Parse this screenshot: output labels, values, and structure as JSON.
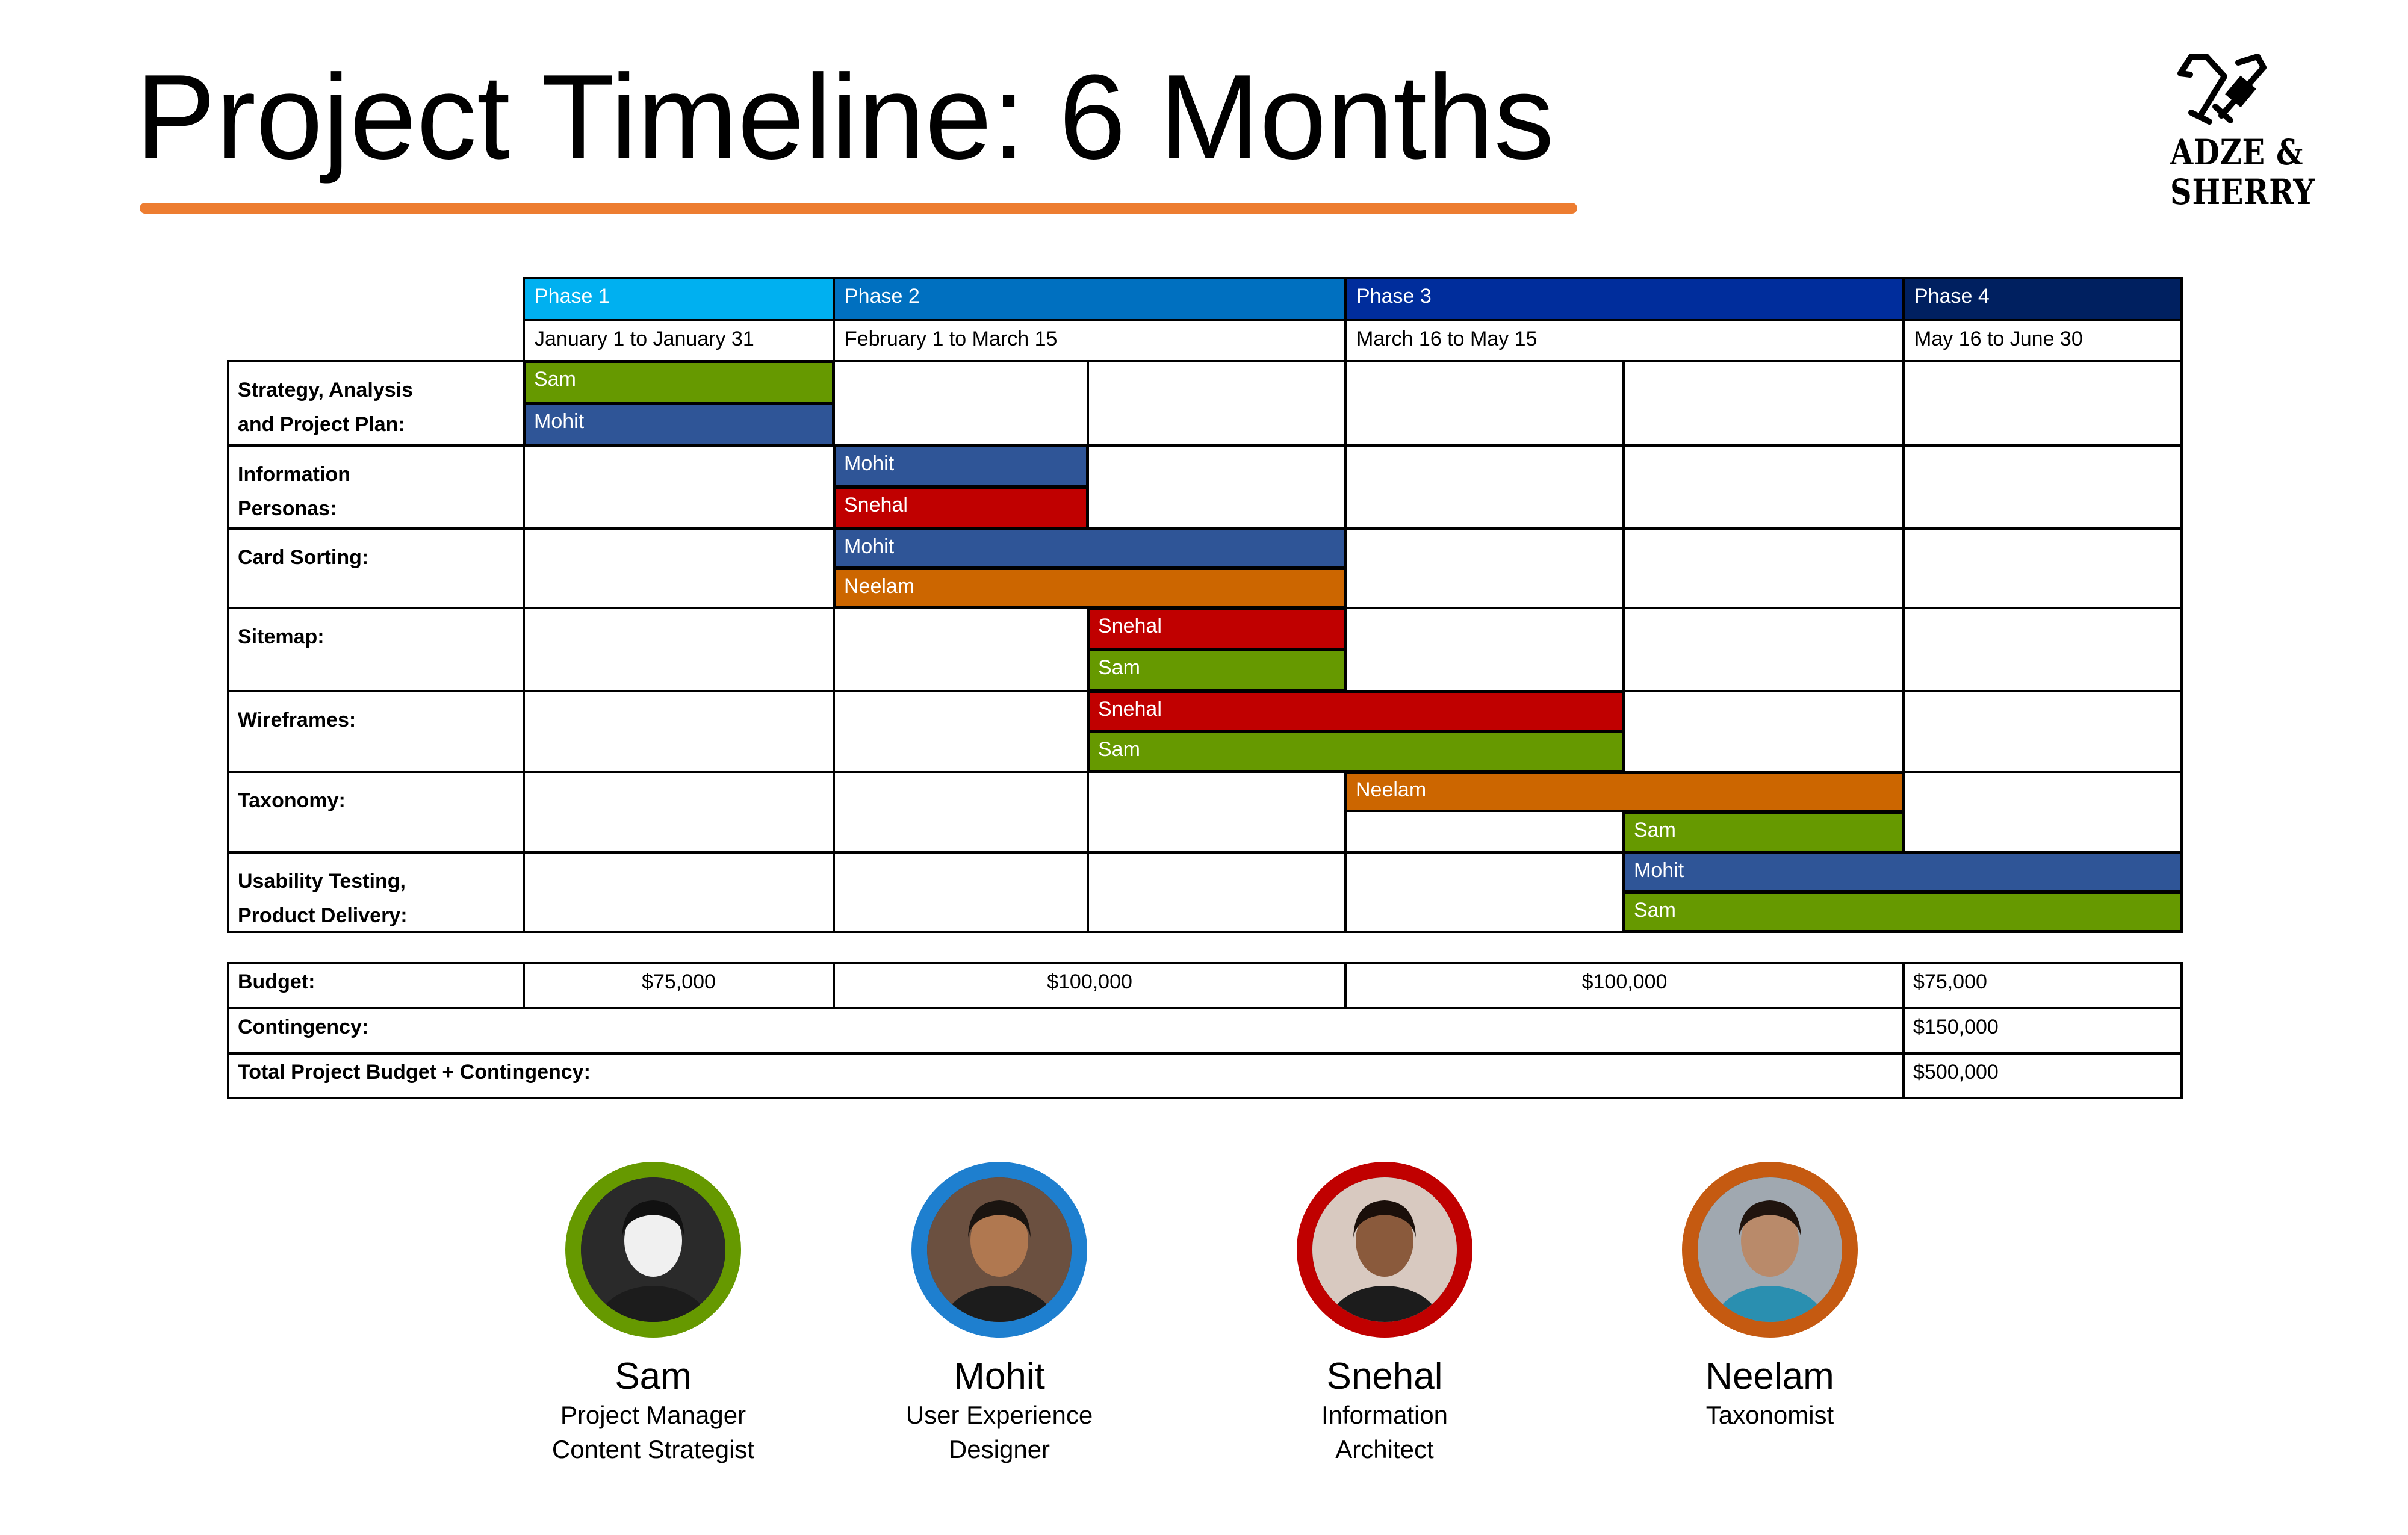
{
  "title": "Project Timeline: 6 Months",
  "logo": {
    "line1": "ADZE &",
    "line2": "SHERRY"
  },
  "colors": {
    "accent": "#ED7D31",
    "phase1": "#00B0F0",
    "phase2": "#0070C0",
    "phase3": "#002D9C",
    "phase4": "#002060",
    "sam": "#669900",
    "mohit": "#2F5597",
    "snehal": "#C00000",
    "neelam": "#CC6600"
  },
  "phases": [
    {
      "name": "Phase 1",
      "dates": "January 1 to January 31"
    },
    {
      "name": "Phase 2",
      "dates": "February 1 to March 15"
    },
    {
      "name": "Phase 3",
      "dates": "March 16 to May 15"
    },
    {
      "name": "Phase 4",
      "dates": "May 16 to June 30"
    }
  ],
  "tasks": [
    {
      "label_lines": [
        "Strategy, Analysis",
        "and Project Plan:"
      ],
      "assignments": [
        {
          "person": "Sam"
        },
        {
          "person": "Mohit"
        }
      ]
    },
    {
      "label_lines": [
        "Information",
        "Personas:"
      ],
      "assignments": [
        {
          "person": "Mohit"
        },
        {
          "person": "Snehal"
        }
      ]
    },
    {
      "label_lines": [
        "Card Sorting:"
      ],
      "assignments": [
        {
          "person": "Mohit"
        },
        {
          "person": "Neelam"
        }
      ]
    },
    {
      "label_lines": [
        "Sitemap:"
      ],
      "assignments": [
        {
          "person": "Snehal"
        },
        {
          "person": "Sam"
        }
      ]
    },
    {
      "label_lines": [
        "Wireframes:"
      ],
      "assignments": [
        {
          "person": "Snehal"
        },
        {
          "person": "Sam"
        }
      ]
    },
    {
      "label_lines": [
        "Taxonomy:"
      ],
      "assignments": [
        {
          "person": "Neelam"
        },
        {
          "person": "Sam"
        }
      ]
    },
    {
      "label_lines": [
        "Usability Testing,",
        "Product Delivery:"
      ],
      "assignments": [
        {
          "person": "Mohit"
        },
        {
          "person": "Sam"
        }
      ]
    }
  ],
  "budget": {
    "label": "Budget:",
    "values": [
      "$75,000",
      "$100,000",
      "$100,000",
      "$75,000"
    ],
    "contingency_label": "Contingency:",
    "contingency_value": "$150,000",
    "total_label": "Total Project Budget + Contingency:",
    "total_value": "$500,000"
  },
  "team": [
    {
      "name": "Sam",
      "role_lines": [
        "Project Manager",
        "Content Strategist"
      ],
      "ring_color": "#669900",
      "icon": "photo-sam"
    },
    {
      "name": "Mohit",
      "role_lines": [
        "User Experience",
        "Designer"
      ],
      "ring_color": "#1E7FCF",
      "icon": "photo-mohit"
    },
    {
      "name": "Snehal",
      "role_lines": [
        "Information",
        "Architect"
      ],
      "ring_color": "#C00000",
      "icon": "photo-snehal"
    },
    {
      "name": "Neelam",
      "role_lines": [
        "Taxonomist"
      ],
      "ring_color": "#C55A11",
      "icon": "photo-neelam"
    }
  ]
}
